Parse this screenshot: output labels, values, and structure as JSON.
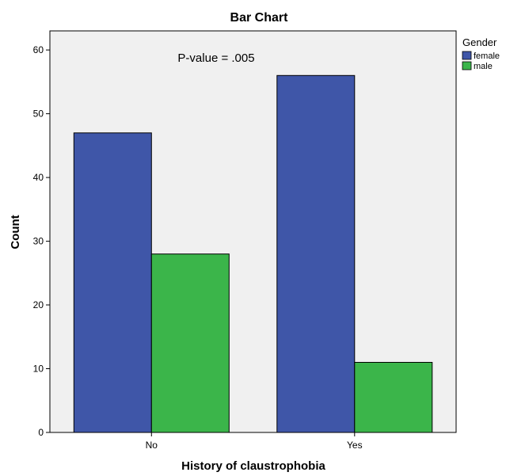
{
  "chart_data": {
    "type": "bar",
    "title": "Bar Chart",
    "xlabel": "History of claustrophobia",
    "ylabel": "Count",
    "categories": [
      "No",
      "Yes"
    ],
    "series": [
      {
        "name": "female",
        "values": [
          47,
          56
        ],
        "color": "#3F56A8"
      },
      {
        "name": "male",
        "values": [
          28,
          11
        ],
        "color": "#3BB54A"
      }
    ],
    "ylim": [
      0,
      63
    ],
    "yticks": [
      0,
      10,
      20,
      30,
      40,
      50,
      60
    ],
    "legend": {
      "title": "Gender",
      "position": "right"
    },
    "annotation": "P-value = .005",
    "plot_background": "#F0F0F0",
    "grid": false
  }
}
